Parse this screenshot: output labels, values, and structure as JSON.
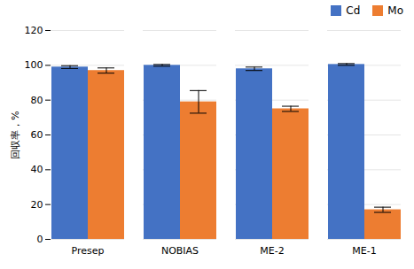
{
  "chart_data": {
    "type": "bar",
    "categories": [
      "Presep",
      "NOBIAS",
      "ME-2",
      "ME-1"
    ],
    "series": [
      {
        "name": "Cd",
        "color": "#4472C4",
        "values": [
          99.0,
          100.0,
          98.0,
          100.5
        ],
        "errors": [
          0.8,
          0.5,
          1.0,
          0.5
        ]
      },
      {
        "name": "Mo",
        "color": "#ED7D31",
        "values": [
          97.0,
          79.0,
          75.0,
          17.0
        ],
        "errors": [
          1.5,
          6.5,
          1.5,
          1.5
        ]
      }
    ],
    "ylabel": "回収率，%",
    "ylim": [
      0,
      120
    ],
    "yticks": [
      0,
      20,
      40,
      60,
      80,
      100,
      120
    ],
    "grid": true,
    "legend": "upper right"
  }
}
